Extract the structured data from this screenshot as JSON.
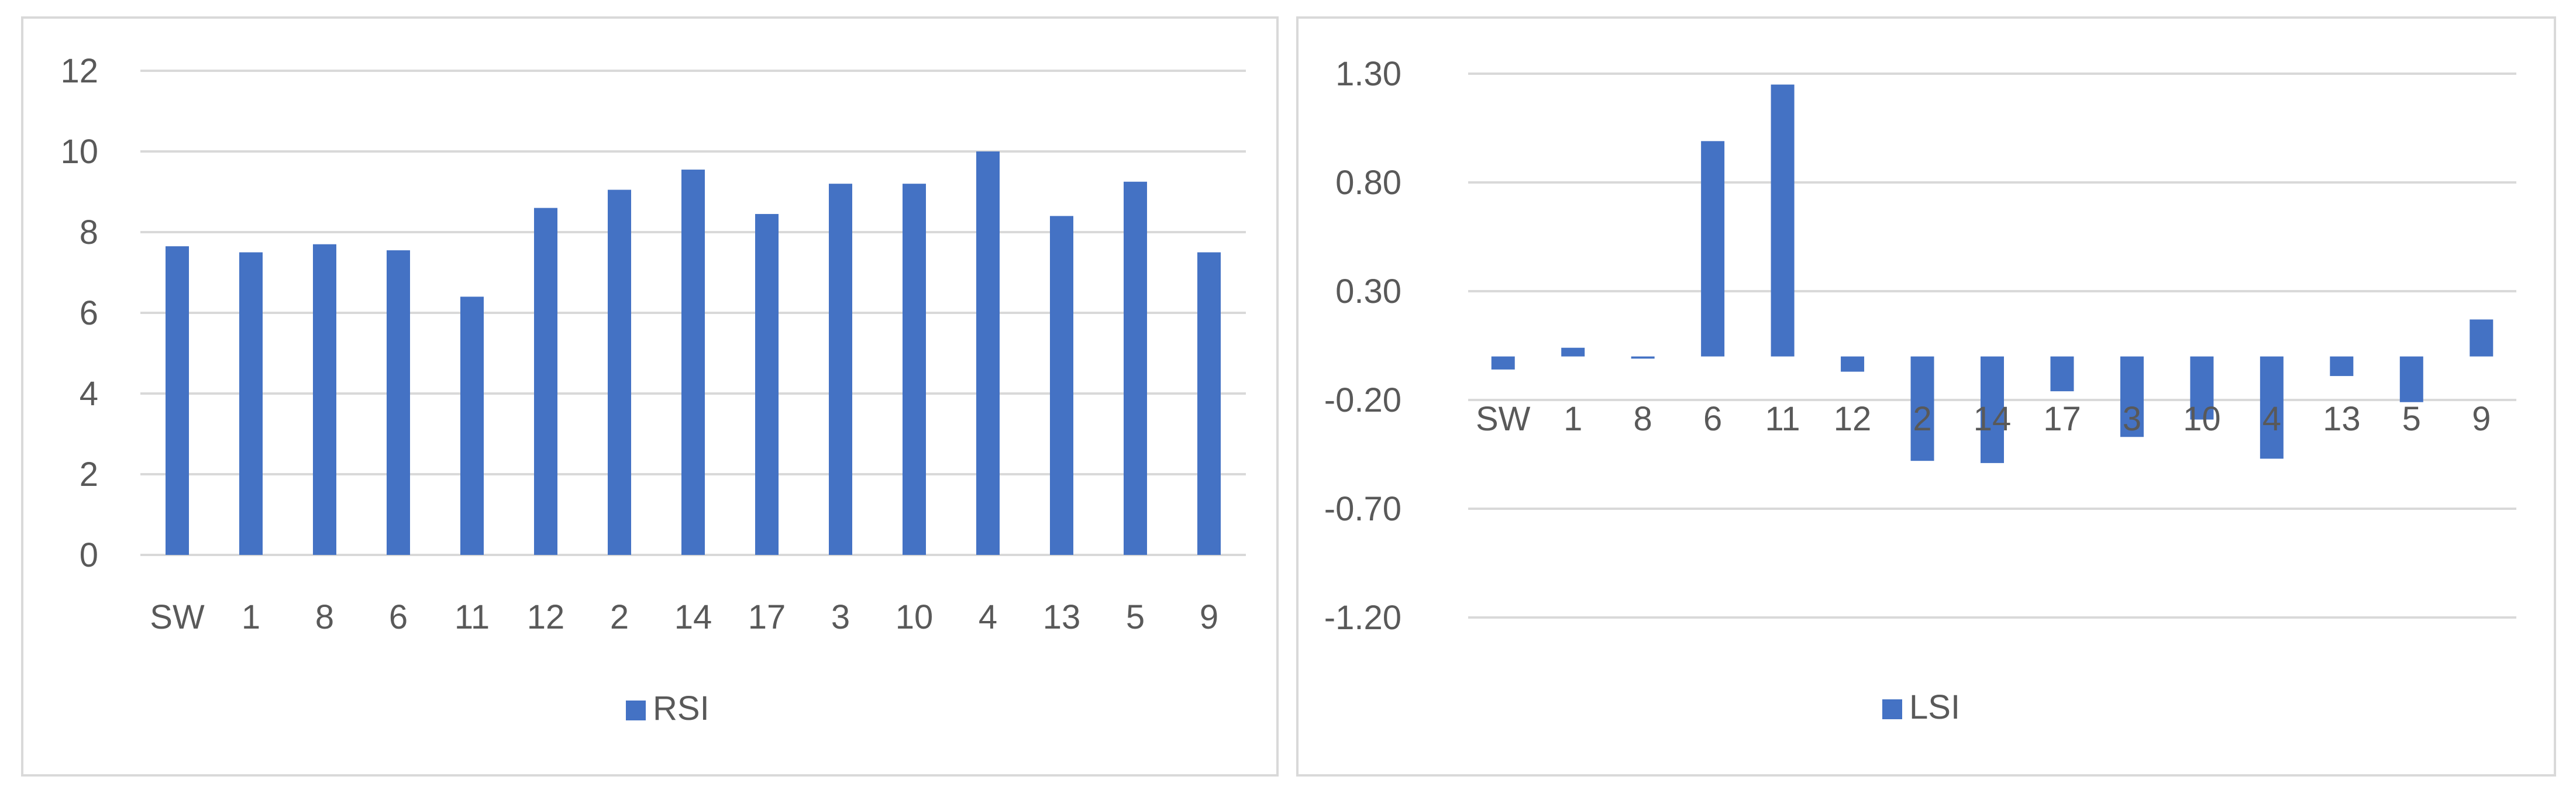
{
  "colors": {
    "bar": "#4472c4",
    "grid": "#d9d9d9",
    "text": "#595959"
  },
  "chart_data": [
    {
      "type": "bar",
      "categories": [
        "SW",
        "1",
        "8",
        "6",
        "11",
        "12",
        "2",
        "14",
        "17",
        "3",
        "10",
        "4",
        "13",
        "5",
        "9"
      ],
      "series": [
        {
          "name": "RSI",
          "values": [
            7.65,
            7.5,
            7.7,
            7.55,
            6.4,
            8.6,
            9.05,
            9.55,
            8.45,
            9.2,
            9.2,
            10.0,
            8.4,
            9.25,
            7.5
          ]
        }
      ],
      "yticks": [
        "0",
        "2",
        "4",
        "6",
        "8",
        "10",
        "12"
      ],
      "ylim": [
        0,
        12
      ],
      "grid": true,
      "legend": "bottom"
    },
    {
      "type": "bar",
      "categories": [
        "SW",
        "1",
        "8",
        "6",
        "11",
        "12",
        "2",
        "14",
        "17",
        "3",
        "10",
        "4",
        "13",
        "5",
        "9"
      ],
      "series": [
        {
          "name": "LSI",
          "values": [
            -0.06,
            0.04,
            -0.01,
            0.99,
            1.25,
            -0.07,
            -0.48,
            -0.49,
            -0.16,
            -0.37,
            -0.29,
            -0.47,
            -0.09,
            -0.21,
            0.17
          ]
        }
      ],
      "yticks": [
        "-1.20",
        "-0.70",
        "-0.20",
        "0.30",
        "0.80",
        "1.30"
      ],
      "ylim": [
        -1.2,
        1.3
      ],
      "grid": true,
      "legend": "bottom"
    }
  ]
}
